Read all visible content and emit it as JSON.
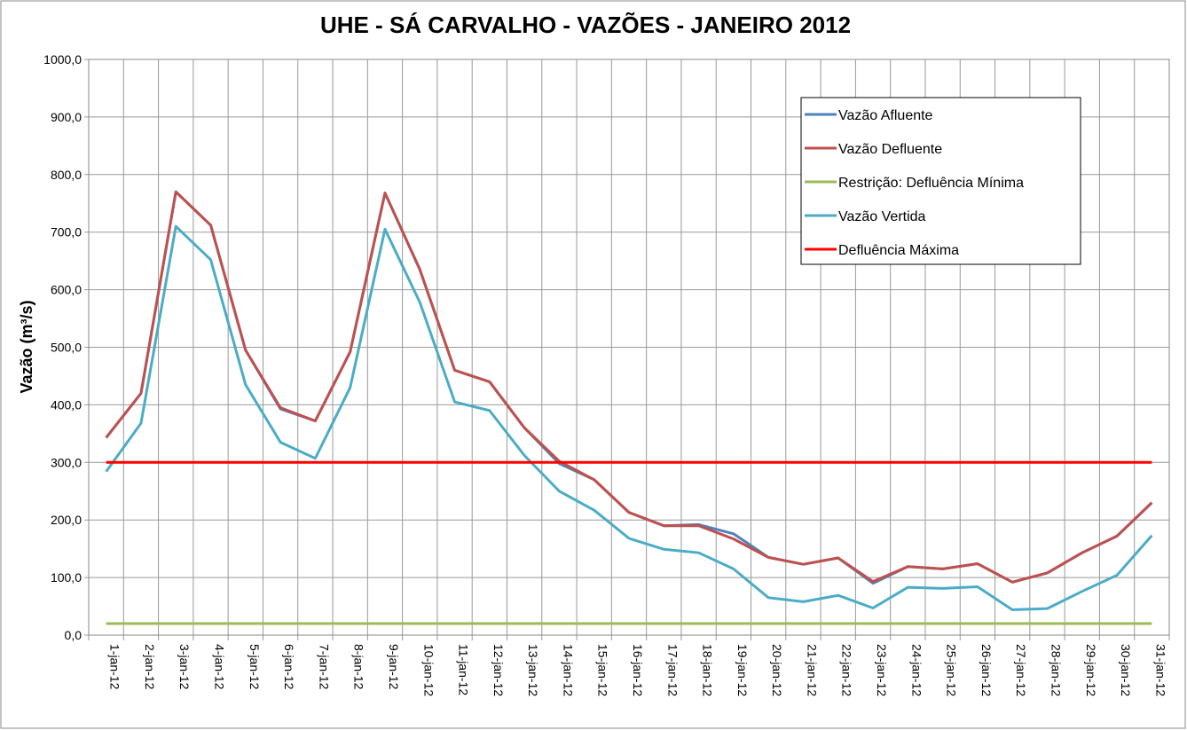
{
  "chart_data": {
    "type": "line",
    "title": "UHE - SÁ CARVALHO - VAZÕES - JANEIRO 2012",
    "y_label": "Vazão (m³/s)",
    "categories": [
      "1-jan-12",
      "2-jan-12",
      "3-jan-12",
      "4-jan-12",
      "5-jan-12",
      "6-jan-12",
      "7-jan-12",
      "8-jan-12",
      "9-jan-12",
      "10-jan-12",
      "11-jan-12",
      "12-jan-12",
      "13-jan-12",
      "14-jan-12",
      "15-jan-12",
      "16-jan-12",
      "17-jan-12",
      "18-jan-12",
      "19-jan-12",
      "20-jan-12",
      "21-jan-12",
      "22-jan-12",
      "23-jan-12",
      "24-jan-12",
      "25-jan-12",
      "26-jan-12",
      "27-jan-12",
      "28-jan-12",
      "29-jan-12",
      "30-jan-12",
      "31-jan-12"
    ],
    "series": [
      {
        "name": "Vazão Afluente",
        "color": "#4f81bd",
        "values": [
          343,
          420,
          770,
          712,
          495,
          393,
          372,
          492,
          768,
          635,
          460,
          440,
          360,
          298,
          270,
          213,
          190,
          192,
          176,
          135,
          123,
          134,
          90,
          119,
          115,
          124,
          92,
          108,
          143,
          172,
          230
        ]
      },
      {
        "name": "Vazão Defluente",
        "color": "#c0504d",
        "values": [
          343,
          420,
          770,
          712,
          495,
          395,
          372,
          492,
          768,
          635,
          460,
          440,
          360,
          302,
          270,
          213,
          190,
          190,
          167,
          135,
          123,
          134,
          93,
          119,
          115,
          124,
          92,
          108,
          143,
          172,
          230
        ]
      },
      {
        "name": "Restrição: Defluência Mínima",
        "color": "#9bbb59",
        "values": [
          20,
          20,
          20,
          20,
          20,
          20,
          20,
          20,
          20,
          20,
          20,
          20,
          20,
          20,
          20,
          20,
          20,
          20,
          20,
          20,
          20,
          20,
          20,
          20,
          20,
          20,
          20,
          20,
          20,
          20,
          20
        ]
      },
      {
        "name": "Vazão Vertida",
        "color": "#4bacc6",
        "values": [
          284,
          368,
          710,
          652,
          435,
          335,
          307,
          430,
          705,
          578,
          405,
          390,
          312,
          250,
          217,
          168,
          149,
          143,
          115,
          65,
          58,
          69,
          47,
          83,
          81,
          84,
          44,
          46,
          76,
          104,
          173
        ]
      },
      {
        "name": "Defluência Máxima",
        "color": "#ff0000",
        "values": [
          300,
          300,
          300,
          300,
          300,
          300,
          300,
          300,
          300,
          300,
          300,
          300,
          300,
          300,
          300,
          300,
          300,
          300,
          300,
          300,
          300,
          300,
          300,
          300,
          300,
          300,
          300,
          300,
          300,
          300,
          300
        ]
      }
    ],
    "ylim": [
      0,
      1000
    ],
    "yticks": [
      {
        "value": 0,
        "label": "0,0"
      },
      {
        "value": 100,
        "label": "100,0"
      },
      {
        "value": 200,
        "label": "200,0"
      },
      {
        "value": 300,
        "label": "300,0"
      },
      {
        "value": 400,
        "label": "400,0"
      },
      {
        "value": 500,
        "label": "500,0"
      },
      {
        "value": 600,
        "label": "600,0"
      },
      {
        "value": 700,
        "label": "700,0"
      },
      {
        "value": 800,
        "label": "800,0"
      },
      {
        "value": 900,
        "label": "900,0"
      },
      {
        "value": 1000,
        "label": "1000,0"
      }
    ],
    "grid": true,
    "legend": "top-right"
  }
}
